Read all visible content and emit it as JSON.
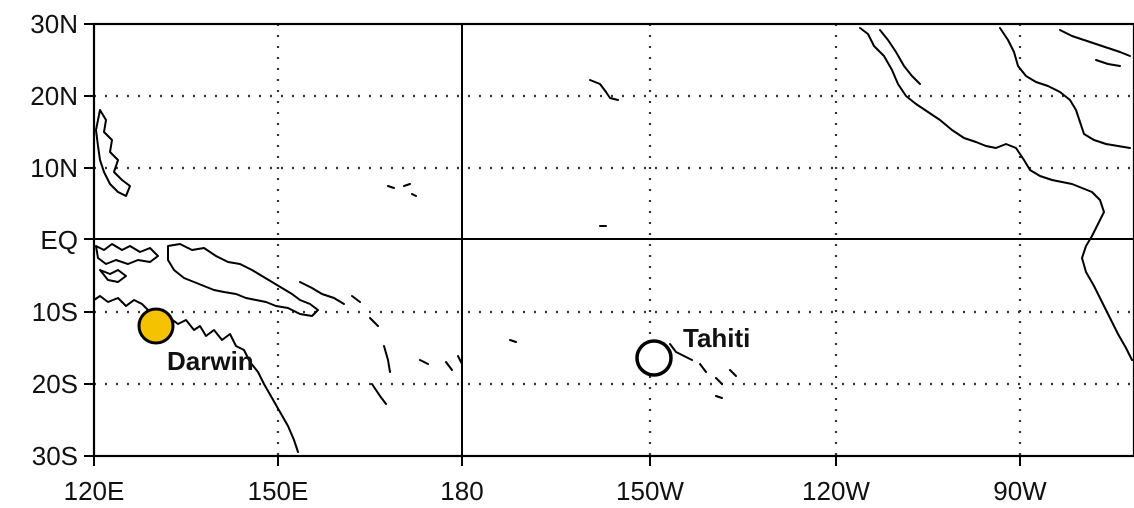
{
  "map": {
    "lon_labels": [
      "120E",
      "150E",
      "180",
      "150W",
      "120W",
      "90W"
    ],
    "lat_labels": [
      "30N",
      "20N",
      "10N",
      "EQ",
      "10S",
      "20S",
      "30S"
    ],
    "stations": [
      {
        "name": "Darwin",
        "lon_label": "130.8E",
        "lat_label": "12.4S",
        "marker": "filled",
        "color": "#F5C200"
      },
      {
        "name": "Tahiti",
        "lon_label": "149.4W",
        "lat_label": "17.5S",
        "marker": "open",
        "color": "#FFFFFF"
      }
    ],
    "colors": {
      "coastline": "#000000",
      "grid": "#333333",
      "darwin_marker": "#F5C200",
      "tahiti_marker": "#FFFFFF"
    },
    "grid": "dotted",
    "reference_lines": [
      "EQ",
      "180"
    ]
  }
}
